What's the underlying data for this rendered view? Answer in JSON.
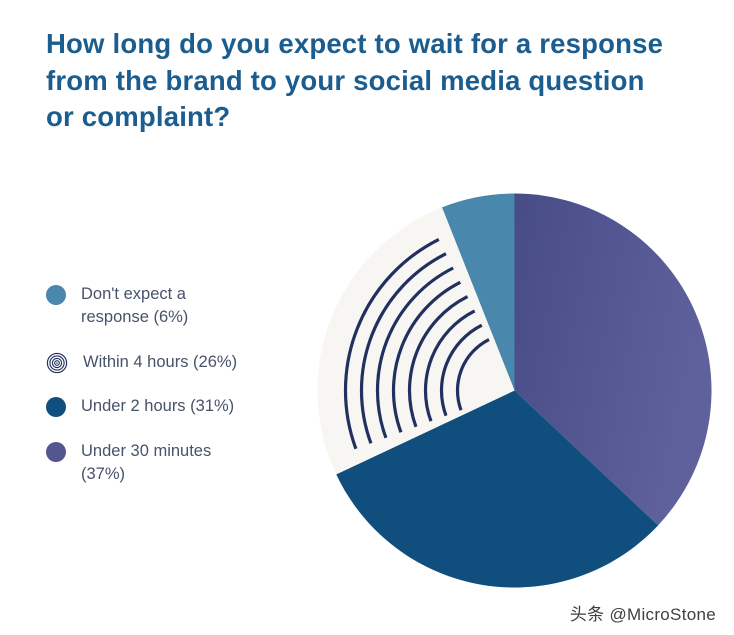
{
  "title": "How long do you expect to wait for a response from the brand to your social media question or complaint?",
  "watermark": "头条 @MicroStone",
  "colors": {
    "title": "#1b5d8f",
    "legend_text": "#46536a",
    "teal": "#4a87ad",
    "navy": "#0f4e7d",
    "purple_dark": "#474b86",
    "purple_light": "#5f619d",
    "purple_mid": "#54578f",
    "pattern_bg": "#f7f6f3",
    "pattern_ring": "#22305f",
    "watermark_text": "#404040"
  },
  "chart_data": {
    "type": "pie",
    "title": "How long do you expect to wait for a response from the brand to your social media question or complaint?",
    "unit": "%",
    "total": 100,
    "slices": [
      {
        "label": "Don't expect a response",
        "slug": "dont-expect-a-response",
        "value": 6,
        "legend": "Don't expect a response (6%)",
        "color_key": "teal"
      },
      {
        "label": "Within 4 hours",
        "slug": "within-4-hours",
        "value": 26,
        "legend": "Within 4 hours (26%)",
        "color_key": "pattern"
      },
      {
        "label": "Under 2 hours",
        "slug": "under-2-hours",
        "value": 31,
        "legend": "Under 2 hours (31%)",
        "color_key": "navy"
      },
      {
        "label": "Under 30 minutes",
        "slug": "under-30-minutes",
        "value": 37,
        "legend": "Under 30 minutes (37%)",
        "color_key": "purple"
      }
    ],
    "layout": {
      "start_angle_deg": -21.6,
      "clockwise_order": [
        0,
        3,
        2,
        1
      ],
      "legend_position": "left",
      "pattern_ring_count": 8
    }
  }
}
